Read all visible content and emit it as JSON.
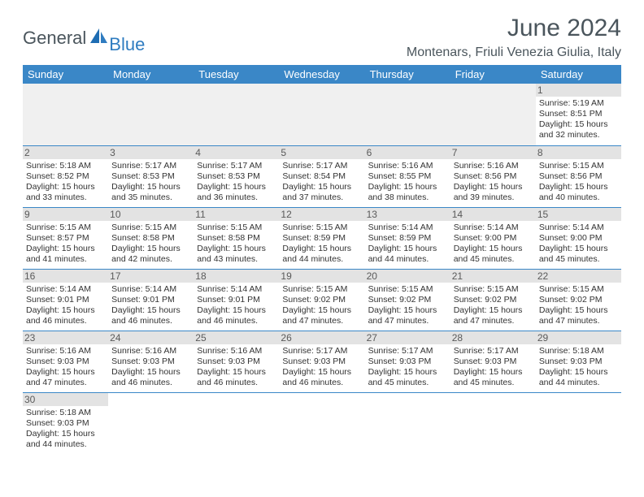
{
  "brand": {
    "part1": "General",
    "part2": "Blue",
    "color1": "#4a555c",
    "color2": "#2f7cc0"
  },
  "title": "June 2024",
  "location": "Montenars, Friuli Venezia Giulia, Italy",
  "colors": {
    "header_bg": "#3a87c7",
    "header_fg": "#ffffff",
    "daynum_bg": "#e3e3e3",
    "blank_bg": "#f0f0f0",
    "cell_border": "#3a87c7",
    "text": "#333333"
  },
  "weekdays": [
    "Sunday",
    "Monday",
    "Tuesday",
    "Wednesday",
    "Thursday",
    "Friday",
    "Saturday"
  ],
  "grid": [
    [
      null,
      null,
      null,
      null,
      null,
      null,
      {
        "n": "1",
        "sr": "5:19 AM",
        "ss": "8:51 PM",
        "dl": "15 hours and 32 minutes."
      }
    ],
    [
      {
        "n": "2",
        "sr": "5:18 AM",
        "ss": "8:52 PM",
        "dl": "15 hours and 33 minutes."
      },
      {
        "n": "3",
        "sr": "5:17 AM",
        "ss": "8:53 PM",
        "dl": "15 hours and 35 minutes."
      },
      {
        "n": "4",
        "sr": "5:17 AM",
        "ss": "8:53 PM",
        "dl": "15 hours and 36 minutes."
      },
      {
        "n": "5",
        "sr": "5:17 AM",
        "ss": "8:54 PM",
        "dl": "15 hours and 37 minutes."
      },
      {
        "n": "6",
        "sr": "5:16 AM",
        "ss": "8:55 PM",
        "dl": "15 hours and 38 minutes."
      },
      {
        "n": "7",
        "sr": "5:16 AM",
        "ss": "8:56 PM",
        "dl": "15 hours and 39 minutes."
      },
      {
        "n": "8",
        "sr": "5:15 AM",
        "ss": "8:56 PM",
        "dl": "15 hours and 40 minutes."
      }
    ],
    [
      {
        "n": "9",
        "sr": "5:15 AM",
        "ss": "8:57 PM",
        "dl": "15 hours and 41 minutes."
      },
      {
        "n": "10",
        "sr": "5:15 AM",
        "ss": "8:58 PM",
        "dl": "15 hours and 42 minutes."
      },
      {
        "n": "11",
        "sr": "5:15 AM",
        "ss": "8:58 PM",
        "dl": "15 hours and 43 minutes."
      },
      {
        "n": "12",
        "sr": "5:15 AM",
        "ss": "8:59 PM",
        "dl": "15 hours and 44 minutes."
      },
      {
        "n": "13",
        "sr": "5:14 AM",
        "ss": "8:59 PM",
        "dl": "15 hours and 44 minutes."
      },
      {
        "n": "14",
        "sr": "5:14 AM",
        "ss": "9:00 PM",
        "dl": "15 hours and 45 minutes."
      },
      {
        "n": "15",
        "sr": "5:14 AM",
        "ss": "9:00 PM",
        "dl": "15 hours and 45 minutes."
      }
    ],
    [
      {
        "n": "16",
        "sr": "5:14 AM",
        "ss": "9:01 PM",
        "dl": "15 hours and 46 minutes."
      },
      {
        "n": "17",
        "sr": "5:14 AM",
        "ss": "9:01 PM",
        "dl": "15 hours and 46 minutes."
      },
      {
        "n": "18",
        "sr": "5:14 AM",
        "ss": "9:01 PM",
        "dl": "15 hours and 46 minutes."
      },
      {
        "n": "19",
        "sr": "5:15 AM",
        "ss": "9:02 PM",
        "dl": "15 hours and 47 minutes."
      },
      {
        "n": "20",
        "sr": "5:15 AM",
        "ss": "9:02 PM",
        "dl": "15 hours and 47 minutes."
      },
      {
        "n": "21",
        "sr": "5:15 AM",
        "ss": "9:02 PM",
        "dl": "15 hours and 47 minutes."
      },
      {
        "n": "22",
        "sr": "5:15 AM",
        "ss": "9:02 PM",
        "dl": "15 hours and 47 minutes."
      }
    ],
    [
      {
        "n": "23",
        "sr": "5:16 AM",
        "ss": "9:03 PM",
        "dl": "15 hours and 47 minutes."
      },
      {
        "n": "24",
        "sr": "5:16 AM",
        "ss": "9:03 PM",
        "dl": "15 hours and 46 minutes."
      },
      {
        "n": "25",
        "sr": "5:16 AM",
        "ss": "9:03 PM",
        "dl": "15 hours and 46 minutes."
      },
      {
        "n": "26",
        "sr": "5:17 AM",
        "ss": "9:03 PM",
        "dl": "15 hours and 46 minutes."
      },
      {
        "n": "27",
        "sr": "5:17 AM",
        "ss": "9:03 PM",
        "dl": "15 hours and 45 minutes."
      },
      {
        "n": "28",
        "sr": "5:17 AM",
        "ss": "9:03 PM",
        "dl": "15 hours and 45 minutes."
      },
      {
        "n": "29",
        "sr": "5:18 AM",
        "ss": "9:03 PM",
        "dl": "15 hours and 44 minutes."
      }
    ],
    [
      {
        "n": "30",
        "sr": "5:18 AM",
        "ss": "9:03 PM",
        "dl": "15 hours and 44 minutes."
      },
      null,
      null,
      null,
      null,
      null,
      null
    ]
  ],
  "labels": {
    "sunrise": "Sunrise:",
    "sunset": "Sunset:",
    "daylight": "Daylight:"
  }
}
